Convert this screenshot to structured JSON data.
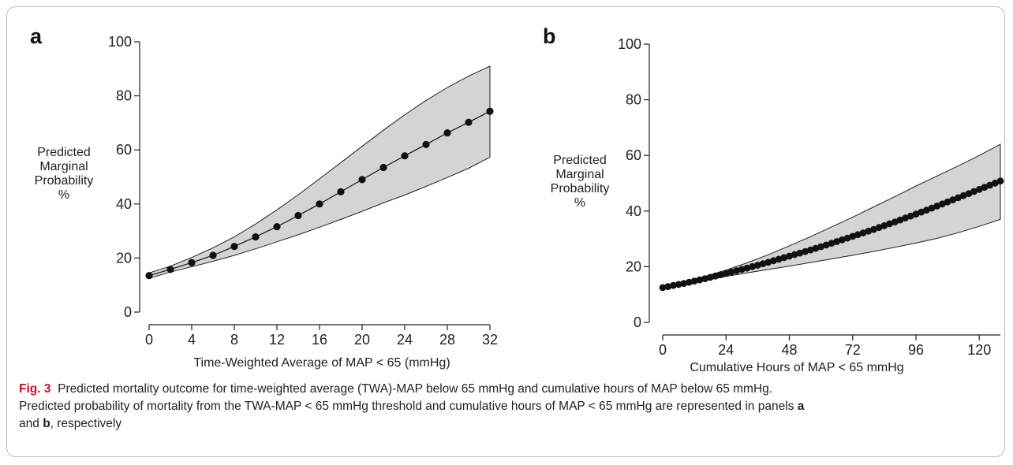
{
  "chart_data": [
    {
      "type": "line",
      "panel": "a",
      "title": "",
      "xlabel": "Time-Weighted Average of MAP < 65 (mmHg)",
      "ylabel_lines": [
        "Predicted",
        "Marginal",
        "Probability",
        "%"
      ],
      "xlim": [
        0,
        32
      ],
      "ylim": [
        0,
        100
      ],
      "xticks": [
        0,
        4,
        8,
        12,
        16,
        20,
        24,
        28,
        32
      ],
      "yticks": [
        0,
        20,
        40,
        60,
        80,
        100
      ],
      "grid": false,
      "legend": "none",
      "series": [
        {
          "x": [
            0,
            2,
            4,
            6,
            8,
            10,
            12,
            14,
            16,
            18,
            20,
            22,
            24,
            26,
            28,
            30,
            32
          ],
          "y": [
            13.5,
            15.8,
            18.3,
            21.0,
            24.3,
            27.8,
            31.6,
            35.7,
            40.0,
            44.5,
            49.0,
            53.5,
            57.8,
            62.0,
            66.3,
            70.2,
            74.3
          ]
        }
      ],
      "ci_lower": [
        12.5,
        14.8,
        16.8,
        18.8,
        21.0,
        23.4,
        26.0,
        28.6,
        31.4,
        34.3,
        37.3,
        40.4,
        43.3,
        46.5,
        49.8,
        53.2,
        57.3
      ],
      "ci_upper": [
        14.5,
        17.0,
        20.2,
        23.8,
        27.8,
        32.6,
        37.8,
        43.4,
        49.3,
        55.3,
        61.3,
        67.3,
        73.0,
        78.3,
        83.1,
        87.3,
        91.0
      ]
    },
    {
      "type": "line",
      "panel": "b",
      "title": "",
      "xlabel": "Cumulative Hours of MAP < 65 mmHg",
      "ylabel_lines": [
        "Predicted",
        "Marginal",
        "Probability",
        "%"
      ],
      "xlim": [
        0,
        128
      ],
      "ylim": [
        0,
        100
      ],
      "xticks": [
        0,
        24,
        48,
        72,
        96,
        120
      ],
      "yticks": [
        0,
        20,
        40,
        60,
        80,
        100
      ],
      "grid": false,
      "legend": "none",
      "series": [
        {
          "x": [
            0,
            8,
            16,
            24,
            32,
            40,
            48,
            56,
            64,
            72,
            80,
            88,
            96,
            104,
            112,
            120,
            128
          ],
          "y": [
            12.5,
            14.0,
            15.7,
            17.6,
            19.5,
            21.6,
            23.8,
            26.0,
            28.4,
            30.9,
            33.4,
            36.1,
            38.9,
            41.8,
            44.8,
            47.8,
            50.8
          ]
        }
      ],
      "ci_lower": [
        12.0,
        13.5,
        15.0,
        16.5,
        17.8,
        19.0,
        20.2,
        21.5,
        22.8,
        24.1,
        25.5,
        27.0,
        28.5,
        30.2,
        32.2,
        34.5,
        37.0
      ],
      "ci_upper": [
        13.0,
        14.6,
        16.5,
        18.8,
        21.4,
        24.3,
        27.5,
        30.8,
        34.3,
        37.8,
        41.5,
        45.2,
        49.0,
        52.6,
        56.2,
        60.0,
        64.0
      ]
    }
  ],
  "panels": {
    "a": {
      "letter": "a"
    },
    "b": {
      "letter": "b"
    }
  },
  "caption": {
    "fig_label": "Fig. 3",
    "line1": "Predicted mortality outcome for time-weighted average (TWA)-MAP below 65 mmHg and cumulative hours of MAP below 65 mmHg.",
    "line2_start": "Predicted probability of mortality from the TWA-MAP < 65 mmHg threshold and cumulative hours of MAP < 65 mmHg are represented in panels",
    "ref_a": "a",
    "line3_mid": "and",
    "ref_b": "b",
    "line3_end": ", respectively"
  },
  "colors": {
    "ci_band": "#d4d4d4",
    "line": "#111111",
    "marker": "#111111",
    "fig_label": "#c8102e"
  }
}
